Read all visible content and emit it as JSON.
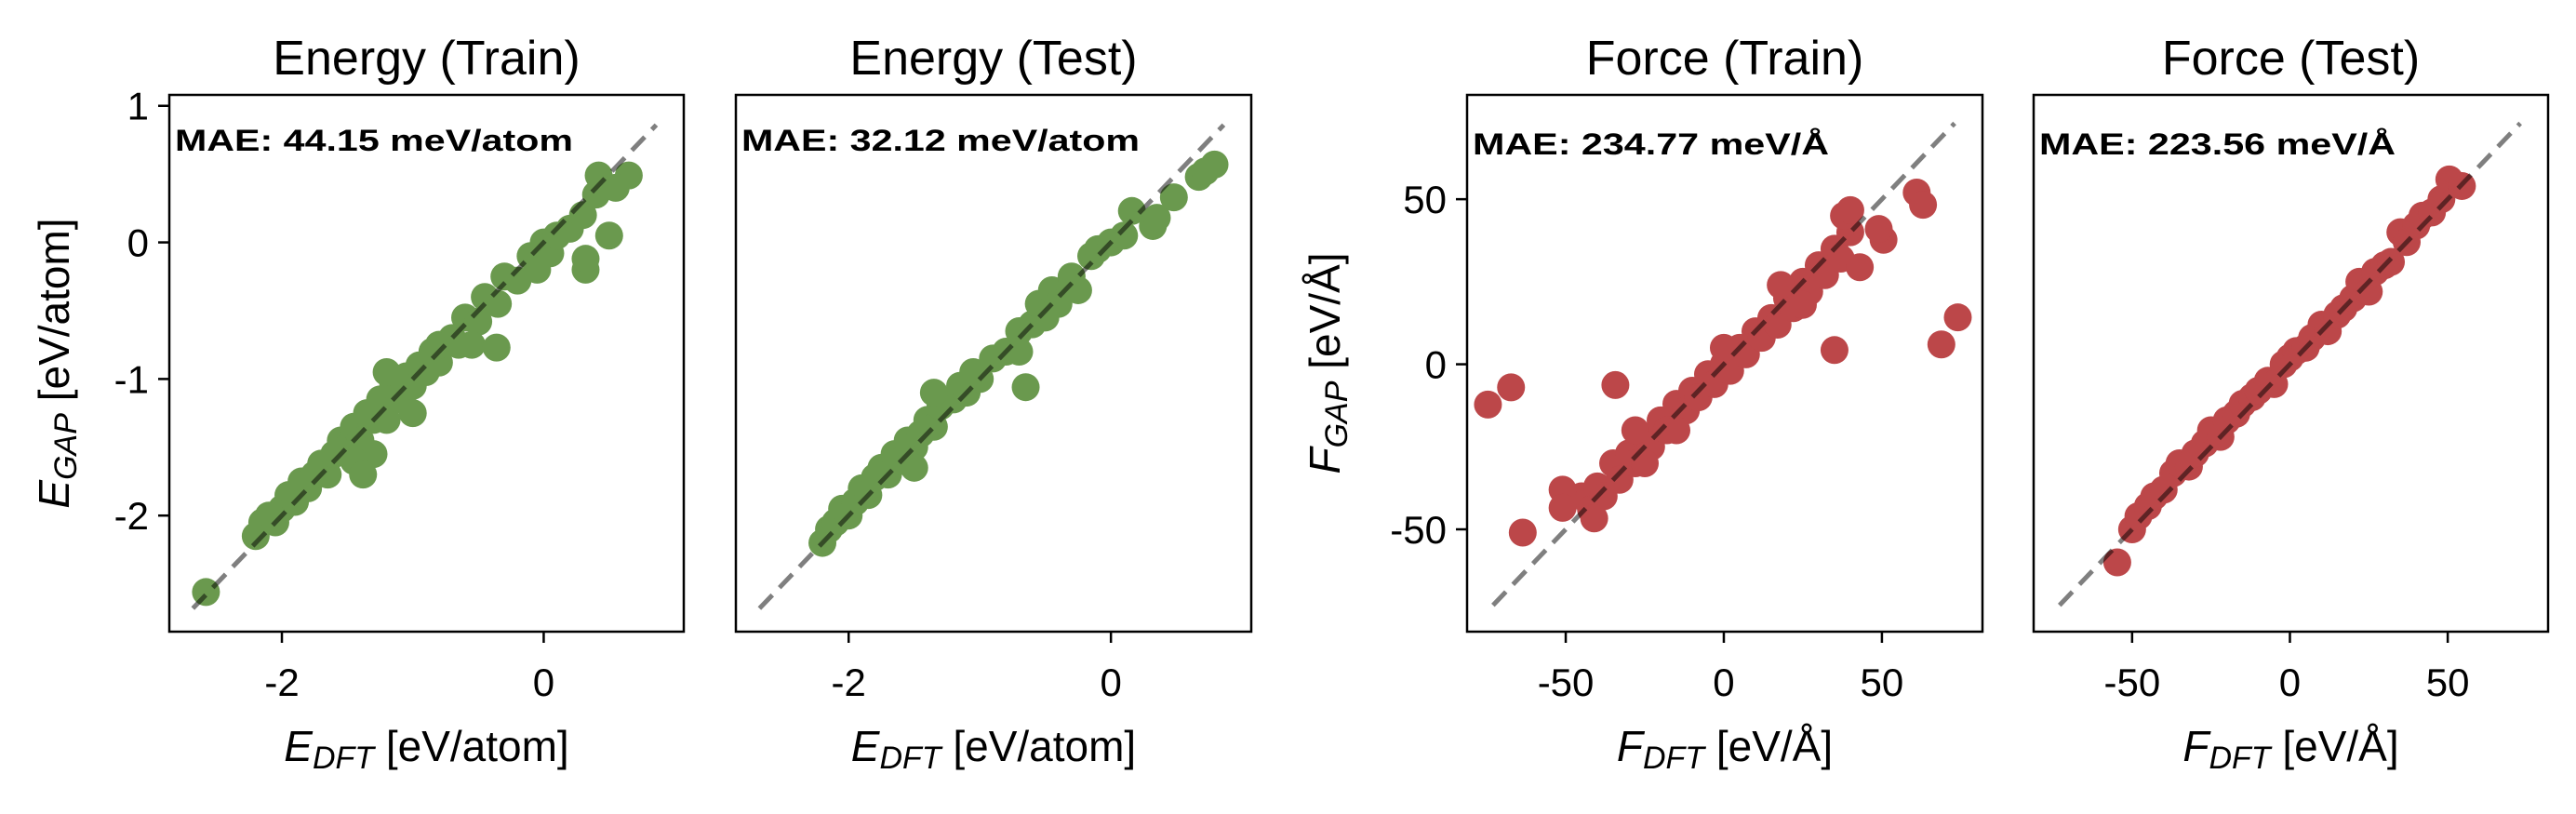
{
  "chart_data": [
    {
      "type": "scatter",
      "title": "Energy (Train)",
      "annotation": "MAE: 44.15 meV/atom",
      "xlabel": {
        "var": "E",
        "sub": "DFT",
        "unit": " [eV/atom]"
      },
      "ylabel": {
        "var": "E",
        "sub": "GAP",
        "unit": " [eV/atom]"
      },
      "xlim": [
        -2.86,
        1.07
      ],
      "ylim": [
        -2.85,
        1.08
      ],
      "xticks": [
        -2,
        0
      ],
      "xtick_labels": [
        "-2",
        "0"
      ],
      "yticks": [
        1,
        0,
        -1,
        -2
      ],
      "ytick_labels": [
        "1",
        "0",
        "-1",
        "-2"
      ],
      "color": "#6a994e",
      "reference_line": [
        [
          -2.68,
          -2.68
        ],
        [
          0.86,
          0.86
        ]
      ],
      "points": [
        [
          -2.58,
          -2.56
        ],
        [
          -2.2,
          -2.15
        ],
        [
          -2.15,
          -2.05
        ],
        [
          -2.1,
          -2.0
        ],
        [
          -2.05,
          -2.05
        ],
        [
          -2.0,
          -1.95
        ],
        [
          -1.95,
          -1.85
        ],
        [
          -1.9,
          -1.9
        ],
        [
          -1.85,
          -1.75
        ],
        [
          -1.8,
          -1.8
        ],
        [
          -1.75,
          -1.7
        ],
        [
          -1.7,
          -1.62
        ],
        [
          -1.65,
          -1.7
        ],
        [
          -1.6,
          -1.55
        ],
        [
          -1.55,
          -1.45
        ],
        [
          -1.5,
          -1.5
        ],
        [
          -1.45,
          -1.35
        ],
        [
          -1.4,
          -1.45
        ],
        [
          -1.35,
          -1.25
        ],
        [
          -1.3,
          -1.3
        ],
        [
          -1.25,
          -1.15
        ],
        [
          -1.2,
          -1.3
        ],
        [
          -1.15,
          -1.05
        ],
        [
          -1.1,
          -1.15
        ],
        [
          -1.05,
          -0.98
        ],
        [
          -1.0,
          -1.05
        ],
        [
          -0.95,
          -0.9
        ],
        [
          -0.9,
          -0.95
        ],
        [
          -0.85,
          -0.8
        ],
        [
          -0.8,
          -0.88
        ],
        [
          -0.7,
          -0.7
        ],
        [
          -0.65,
          -0.75
        ],
        [
          -0.6,
          -0.55
        ],
        [
          -0.5,
          -0.58
        ],
        [
          -0.45,
          -0.4
        ],
        [
          -0.35,
          -0.45
        ],
        [
          -0.3,
          -0.25
        ],
        [
          -0.2,
          -0.28
        ],
        [
          -0.1,
          -0.1
        ],
        [
          -0.05,
          -0.2
        ],
        [
          0.0,
          0.0
        ],
        [
          0.05,
          -0.08
        ],
        [
          0.1,
          0.05
        ],
        [
          0.2,
          0.1
        ],
        [
          0.3,
          0.2
        ],
        [
          0.4,
          0.35
        ],
        [
          -1.3,
          -1.55
        ],
        [
          -1.0,
          -1.25
        ],
        [
          -1.45,
          -1.6
        ],
        [
          -0.55,
          -0.75
        ],
        [
          -1.2,
          -0.95
        ],
        [
          -0.8,
          -0.75
        ],
        [
          -1.38,
          -1.7
        ],
        [
          -0.36,
          -0.77
        ],
        [
          0.32,
          -0.2
        ],
        [
          0.32,
          -0.12
        ],
        [
          0.5,
          0.05
        ],
        [
          0.42,
          0.49
        ],
        [
          0.65,
          0.49
        ],
        [
          0.55,
          0.4
        ]
      ]
    },
    {
      "type": "scatter",
      "title": "Energy (Test)",
      "annotation": "MAE: 32.12 meV/atom",
      "xlabel": {
        "var": "E",
        "sub": "DFT",
        "unit": " [eV/atom]"
      },
      "xlim": [
        -2.86,
        1.07
      ],
      "ylim": [
        -2.85,
        1.08
      ],
      "xticks": [
        -2,
        0
      ],
      "xtick_labels": [
        "-2",
        "0"
      ],
      "color": "#6a994e",
      "reference_line": [
        [
          -2.68,
          -2.68
        ],
        [
          0.86,
          0.86
        ]
      ],
      "points": [
        [
          -2.2,
          -2.2
        ],
        [
          -2.15,
          -2.1
        ],
        [
          -2.1,
          -2.05
        ],
        [
          -2.05,
          -1.95
        ],
        [
          -2.0,
          -2.0
        ],
        [
          -1.95,
          -1.9
        ],
        [
          -1.9,
          -1.8
        ],
        [
          -1.85,
          -1.85
        ],
        [
          -1.8,
          -1.72
        ],
        [
          -1.75,
          -1.65
        ],
        [
          -1.7,
          -1.7
        ],
        [
          -1.65,
          -1.55
        ],
        [
          -1.6,
          -1.6
        ],
        [
          -1.55,
          -1.45
        ],
        [
          -1.5,
          -1.5
        ],
        [
          -1.45,
          -1.4
        ],
        [
          -1.4,
          -1.3
        ],
        [
          -1.35,
          -1.35
        ],
        [
          -1.3,
          -1.2
        ],
        [
          -1.2,
          -1.15
        ],
        [
          -1.15,
          -1.05
        ],
        [
          -1.1,
          -1.1
        ],
        [
          -1.05,
          -0.95
        ],
        [
          -1.0,
          -1.0
        ],
        [
          -0.9,
          -0.85
        ],
        [
          -0.8,
          -0.8
        ],
        [
          -0.7,
          -0.65
        ],
        [
          -0.6,
          -0.6
        ],
        [
          -0.55,
          -0.45
        ],
        [
          -0.5,
          -0.55
        ],
        [
          -0.45,
          -0.35
        ],
        [
          -0.4,
          -0.45
        ],
        [
          -0.3,
          -0.25
        ],
        [
          -0.25,
          -0.35
        ],
        [
          -0.15,
          -0.1
        ],
        [
          -0.1,
          -0.05
        ],
        [
          0.0,
          0.0
        ],
        [
          0.1,
          0.05
        ],
        [
          -1.35,
          -1.1
        ],
        [
          -1.5,
          -1.65
        ],
        [
          -0.7,
          -0.8
        ],
        [
          -0.65,
          -1.06
        ],
        [
          0.16,
          0.23
        ],
        [
          0.32,
          0.12
        ],
        [
          0.35,
          0.18
        ],
        [
          0.48,
          0.33
        ],
        [
          0.67,
          0.48
        ],
        [
          0.79,
          0.57
        ],
        [
          0.72,
          0.52
        ]
      ]
    },
    {
      "type": "scatter",
      "title": "Force (Train)",
      "annotation": "MAE: 234.77 meV/Å",
      "xlabel": {
        "var": "F",
        "sub": "DFT",
        "unit": " [eV/Å]"
      },
      "ylabel": {
        "var": "F",
        "sub": "GAP",
        "unit": " [eV/Å]"
      },
      "xlim": [
        -81.2,
        81.8
      ],
      "ylim": [
        -81,
        81.6
      ],
      "xticks": [
        -50,
        0,
        50
      ],
      "xtick_labels": [
        "-50",
        "0",
        "50"
      ],
      "yticks": [
        50,
        0,
        -50
      ],
      "ytick_labels": [
        "50",
        "0",
        "-50"
      ],
      "color": "#bc4749",
      "reference_line": [
        [
          -73,
          -73
        ],
        [
          73,
          73
        ]
      ],
      "points": [
        [
          -45,
          -40
        ],
        [
          -42,
          -44
        ],
        [
          -40,
          -37
        ],
        [
          -38,
          -40
        ],
        [
          -35,
          -30
        ],
        [
          -33,
          -35
        ],
        [
          -30,
          -27
        ],
        [
          -28,
          -30
        ],
        [
          -25,
          -22
        ],
        [
          -23,
          -25
        ],
        [
          -20,
          -17
        ],
        [
          -18,
          -20
        ],
        [
          -15,
          -12
        ],
        [
          -12,
          -14
        ],
        [
          -10,
          -8
        ],
        [
          -8,
          -10
        ],
        [
          -5,
          -3
        ],
        [
          -3,
          -6
        ],
        [
          0,
          0
        ],
        [
          2,
          -2
        ],
        [
          5,
          5
        ],
        [
          7,
          3
        ],
        [
          10,
          10
        ],
        [
          12,
          8
        ],
        [
          15,
          14
        ],
        [
          17,
          12
        ],
        [
          20,
          20
        ],
        [
          22,
          17
        ],
        [
          25,
          25
        ],
        [
          27,
          22
        ],
        [
          30,
          30
        ],
        [
          32,
          27
        ],
        [
          35,
          35
        ],
        [
          37,
          32
        ],
        [
          40,
          40
        ],
        [
          -28,
          -20
        ],
        [
          -25,
          -30
        ],
        [
          18,
          24
        ],
        [
          25,
          18
        ],
        [
          0,
          5
        ],
        [
          -15,
          -20
        ],
        [
          38,
          45
        ],
        [
          -74.6,
          -12.2
        ],
        [
          -67.3,
          -7
        ],
        [
          -34.3,
          -6.3
        ],
        [
          -63.6,
          -51
        ],
        [
          -51,
          -38
        ],
        [
          -51,
          -43.5
        ],
        [
          -41,
          -46.7
        ],
        [
          35,
          4.3
        ],
        [
          61,
          52
        ],
        [
          63,
          48.3
        ],
        [
          68.8,
          6
        ],
        [
          74,
          14.2
        ],
        [
          50.5,
          37.7
        ],
        [
          49,
          41
        ],
        [
          43,
          29.4
        ],
        [
          40,
          46.7
        ]
      ]
    },
    {
      "type": "scatter",
      "title": "Force (Test)",
      "annotation": "MAE: 223.56 meV/Å",
      "xlabel": {
        "var": "F",
        "sub": "DFT",
        "unit": " [eV/Å]"
      },
      "xlim": [
        -81.2,
        81.8
      ],
      "ylim": [
        -81,
        81.6
      ],
      "xticks": [
        -50,
        0,
        50
      ],
      "xtick_labels": [
        "-50",
        "0",
        "50"
      ],
      "color": "#bc4749",
      "reference_line": [
        [
          -73,
          -73
        ],
        [
          73,
          73
        ]
      ],
      "points": [
        [
          -54.7,
          -60
        ],
        [
          -50,
          -50
        ],
        [
          -48,
          -46
        ],
        [
          -45,
          -43
        ],
        [
          -43,
          -40
        ],
        [
          -40,
          -38
        ],
        [
          -37,
          -33
        ],
        [
          -35,
          -30
        ],
        [
          -32,
          -31
        ],
        [
          -30,
          -27
        ],
        [
          -27,
          -24
        ],
        [
          -25,
          -20
        ],
        [
          -22,
          -22
        ],
        [
          -20,
          -17
        ],
        [
          -17,
          -15
        ],
        [
          -15,
          -12
        ],
        [
          -12,
          -10
        ],
        [
          -10,
          -8
        ],
        [
          -7,
          -5
        ],
        [
          -5,
          -6
        ],
        [
          -2,
          0
        ],
        [
          0,
          2
        ],
        [
          2,
          4
        ],
        [
          5,
          5
        ],
        [
          7,
          8
        ],
        [
          10,
          12
        ],
        [
          12,
          10
        ],
        [
          15,
          15
        ],
        [
          17,
          17
        ],
        [
          20,
          20
        ],
        [
          22,
          25
        ],
        [
          25,
          22
        ],
        [
          27,
          28
        ],
        [
          30,
          30
        ],
        [
          32,
          31
        ],
        [
          35,
          40
        ],
        [
          37,
          37
        ],
        [
          40,
          42
        ],
        [
          42,
          45
        ],
        [
          45,
          46
        ],
        [
          48,
          50
        ],
        [
          50.5,
          56
        ],
        [
          54.5,
          54
        ]
      ]
    }
  ]
}
